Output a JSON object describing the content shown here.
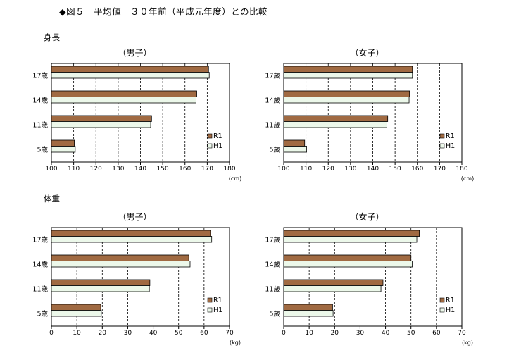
{
  "header": {
    "title": "◆図５　平均値　３０年前（平成元年度）との比較"
  },
  "sections": {
    "height_label": "身長",
    "weight_label": "体重"
  },
  "colors": {
    "R1": "#a06a42",
    "H1": "#ecf8ea",
    "bar_stroke": "#000000",
    "grid": "#000000"
  },
  "chart_data": [
    {
      "type": "bar",
      "orientation": "horizontal",
      "title": "（男子）",
      "categories": [
        "17歳",
        "14歳",
        "11歳",
        "5歳"
      ],
      "series": [
        {
          "name": "R1",
          "values": [
            170.6,
            165.3,
            145.0,
            110.3
          ]
        },
        {
          "name": "H1",
          "values": [
            170.9,
            165.0,
            144.6,
            110.7
          ]
        }
      ],
      "xlim": [
        100,
        180
      ],
      "xticks": [
        100,
        110,
        120,
        130,
        140,
        150,
        160,
        170,
        180
      ],
      "unit": "(cm)",
      "grid": "vertical-dashed",
      "legend": "bottom-right"
    },
    {
      "type": "bar",
      "orientation": "horizontal",
      "title": "（女子）",
      "categories": [
        "17歳",
        "14歳",
        "11歳",
        "5歳"
      ],
      "series": [
        {
          "name": "R1",
          "values": [
            157.8,
            156.5,
            146.7,
            109.4
          ]
        },
        {
          "name": "H1",
          "values": [
            157.8,
            156.3,
            146.3,
            110.3
          ]
        }
      ],
      "xlim": [
        100,
        180
      ],
      "xticks": [
        100,
        110,
        120,
        130,
        140,
        150,
        160,
        170,
        180
      ],
      "unit": "(cm)",
      "grid": "vertical-dashed",
      "legend": "bottom-right"
    },
    {
      "type": "bar",
      "orientation": "horizontal",
      "title": "（男子）",
      "categories": [
        "17歳",
        "14歳",
        "11歳",
        "5歳"
      ],
      "series": [
        {
          "name": "R1",
          "values": [
            62.5,
            54.0,
            38.7,
            19.4
          ]
        },
        {
          "name": "H1",
          "values": [
            63.0,
            54.5,
            38.5,
            19.6
          ]
        }
      ],
      "xlim": [
        0,
        70
      ],
      "xticks": [
        0,
        10,
        20,
        30,
        40,
        50,
        60,
        70
      ],
      "unit": "(kg)",
      "grid": "vertical-dashed",
      "legend": "bottom-right"
    },
    {
      "type": "bar",
      "orientation": "horizontal",
      "title": "（女子）",
      "categories": [
        "17歳",
        "14歳",
        "11歳",
        "5歳"
      ],
      "series": [
        {
          "name": "R1",
          "values": [
            53.3,
            50.0,
            39.0,
            19.2
          ]
        },
        {
          "name": "H1",
          "values": [
            52.3,
            50.5,
            38.2,
            19.4
          ]
        }
      ],
      "xlim": [
        0,
        70
      ],
      "xticks": [
        0,
        10,
        20,
        30,
        40,
        50,
        60,
        70
      ],
      "unit": "(kg)",
      "grid": "vertical-dashed",
      "legend": "bottom-right"
    }
  ]
}
